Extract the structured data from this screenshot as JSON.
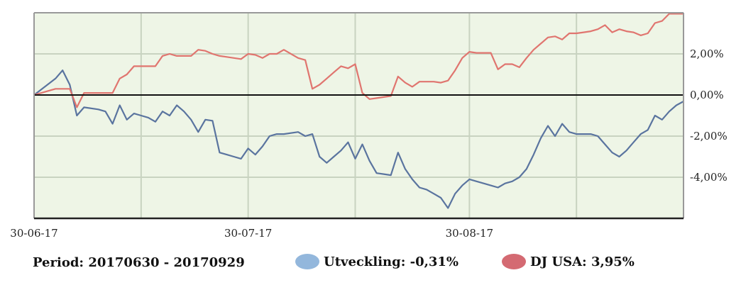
{
  "footer": {
    "period": "Period: 20170630 - 20170929",
    "legend": [
      {
        "label": "Utveckling: -0,31%",
        "color": "#93b7dc"
      },
      {
        "label": "DJ USA: 3,95%",
        "color": "#d46a72"
      }
    ]
  },
  "chart_data": {
    "type": "line",
    "x_tick_labels": [
      "30-06-17",
      "30-07-17",
      "30-08-17"
    ],
    "x_tick_days": [
      0,
      30,
      61
    ],
    "xlim": [
      0,
      91
    ],
    "y_tick_labels": [
      "2,00%",
      "0,00%",
      "-2,00%",
      "-4,00%"
    ],
    "y_tick_values": [
      2,
      0,
      -2,
      -4
    ],
    "ylim": [
      -6,
      4
    ],
    "grid": true,
    "background": "#eef5e6",
    "series": [
      {
        "name": "Utveckling",
        "color": "#5a749f",
        "x": [
          0,
          3,
          4,
          5,
          6,
          7,
          9,
          10,
          11,
          12,
          13,
          14,
          15,
          16,
          17,
          18,
          19,
          20,
          21,
          22,
          23,
          24,
          25,
          26,
          27,
          28,
          29,
          30,
          31,
          32,
          33,
          34,
          35,
          37,
          38,
          39,
          40,
          41,
          42,
          43,
          44,
          45,
          46,
          47,
          48,
          49,
          50,
          51,
          52,
          53,
          54,
          55,
          56,
          57,
          58,
          59,
          60,
          61,
          62,
          63,
          64,
          65,
          66,
          67,
          68,
          69,
          70,
          71,
          72,
          73,
          74,
          75,
          76,
          77,
          78,
          79,
          80,
          81,
          82,
          83,
          84,
          85,
          86,
          87,
          88,
          89,
          90,
          91
        ],
        "y": [
          0,
          0.8,
          1.2,
          0.5,
          -1,
          -0.6,
          -0.7,
          -0.8,
          -1.4,
          -0.5,
          -1.2,
          -0.9,
          -1,
          -1.1,
          -1.3,
          -0.8,
          -1,
          -0.5,
          -0.8,
          -1.2,
          -1.8,
          -1.2,
          -1.25,
          -2.8,
          -2.9,
          -3.0,
          -3.1,
          -2.6,
          -2.9,
          -2.5,
          -2,
          -1.9,
          -1.9,
          -1.8,
          -2,
          -1.9,
          -3,
          -3.3,
          -3,
          -2.7,
          -2.3,
          -3.1,
          -2.4,
          -3.2,
          -3.8,
          -3.85,
          -3.9,
          -2.8,
          -3.6,
          -4.1,
          -4.5,
          -4.6,
          -4.8,
          -5.0,
          -5.5,
          -4.8,
          -4.4,
          -4.1,
          -4.2,
          -4.3,
          -4.4,
          -4.5,
          -4.3,
          -4.2,
          -4.0,
          -3.6,
          -2.9,
          -2.1,
          -1.5,
          -2.0,
          -1.4,
          -1.8,
          -1.9,
          -1.9,
          -1.9,
          -2.0,
          -2.4,
          -2.8,
          -3.0,
          -2.7,
          -2.3,
          -1.9,
          -1.7,
          -1.0,
          -1.2,
          -0.8,
          -0.5,
          -0.31
        ]
      },
      {
        "name": "DJ USA",
        "color": "#e0756f",
        "x": [
          0,
          2,
          3,
          4,
          5,
          6,
          7,
          9,
          10,
          11,
          12,
          13,
          14,
          15,
          16,
          17,
          18,
          19,
          20,
          21,
          22,
          23,
          24,
          25,
          26,
          27,
          28,
          29,
          30,
          31,
          32,
          33,
          34,
          35,
          37,
          38,
          39,
          40,
          41,
          42,
          43,
          44,
          45,
          46,
          47,
          48,
          49,
          50,
          51,
          52,
          53,
          54,
          55,
          56,
          57,
          58,
          59,
          60,
          61,
          62,
          63,
          64,
          65,
          66,
          67,
          68,
          69,
          70,
          71,
          72,
          73,
          74,
          75,
          76,
          77,
          78,
          79,
          80,
          81,
          82,
          83,
          84,
          85,
          86,
          87,
          88,
          89,
          90,
          91
        ],
        "y": [
          0,
          0.2,
          0.3,
          0.3,
          0.3,
          -0.6,
          0.1,
          0.1,
          0.1,
          0.1,
          0.8,
          1.0,
          1.4,
          1.4,
          1.4,
          1.4,
          1.9,
          2.0,
          1.9,
          1.9,
          1.9,
          2.2,
          2.15,
          2.0,
          1.9,
          1.85,
          1.8,
          1.75,
          2.0,
          1.95,
          1.8,
          2.0,
          2.0,
          2.2,
          1.8,
          1.7,
          0.3,
          0.5,
          0.8,
          1.1,
          1.4,
          1.3,
          1.5,
          0.1,
          -0.2,
          -0.15,
          -0.1,
          -0.05,
          0.9,
          0.6,
          0.4,
          0.65,
          0.65,
          0.65,
          0.6,
          0.7,
          1.2,
          1.8,
          2.1,
          2.05,
          2.05,
          2.05,
          1.25,
          1.5,
          1.5,
          1.35,
          1.8,
          2.2,
          2.5,
          2.8,
          2.85,
          2.7,
          3.0,
          3.0,
          3.05,
          3.1,
          3.2,
          3.4,
          3.05,
          3.2,
          3.1,
          3.05,
          2.9,
          3.0,
          3.5,
          3.6,
          3.95,
          3.95,
          3.95
        ]
      }
    ]
  }
}
